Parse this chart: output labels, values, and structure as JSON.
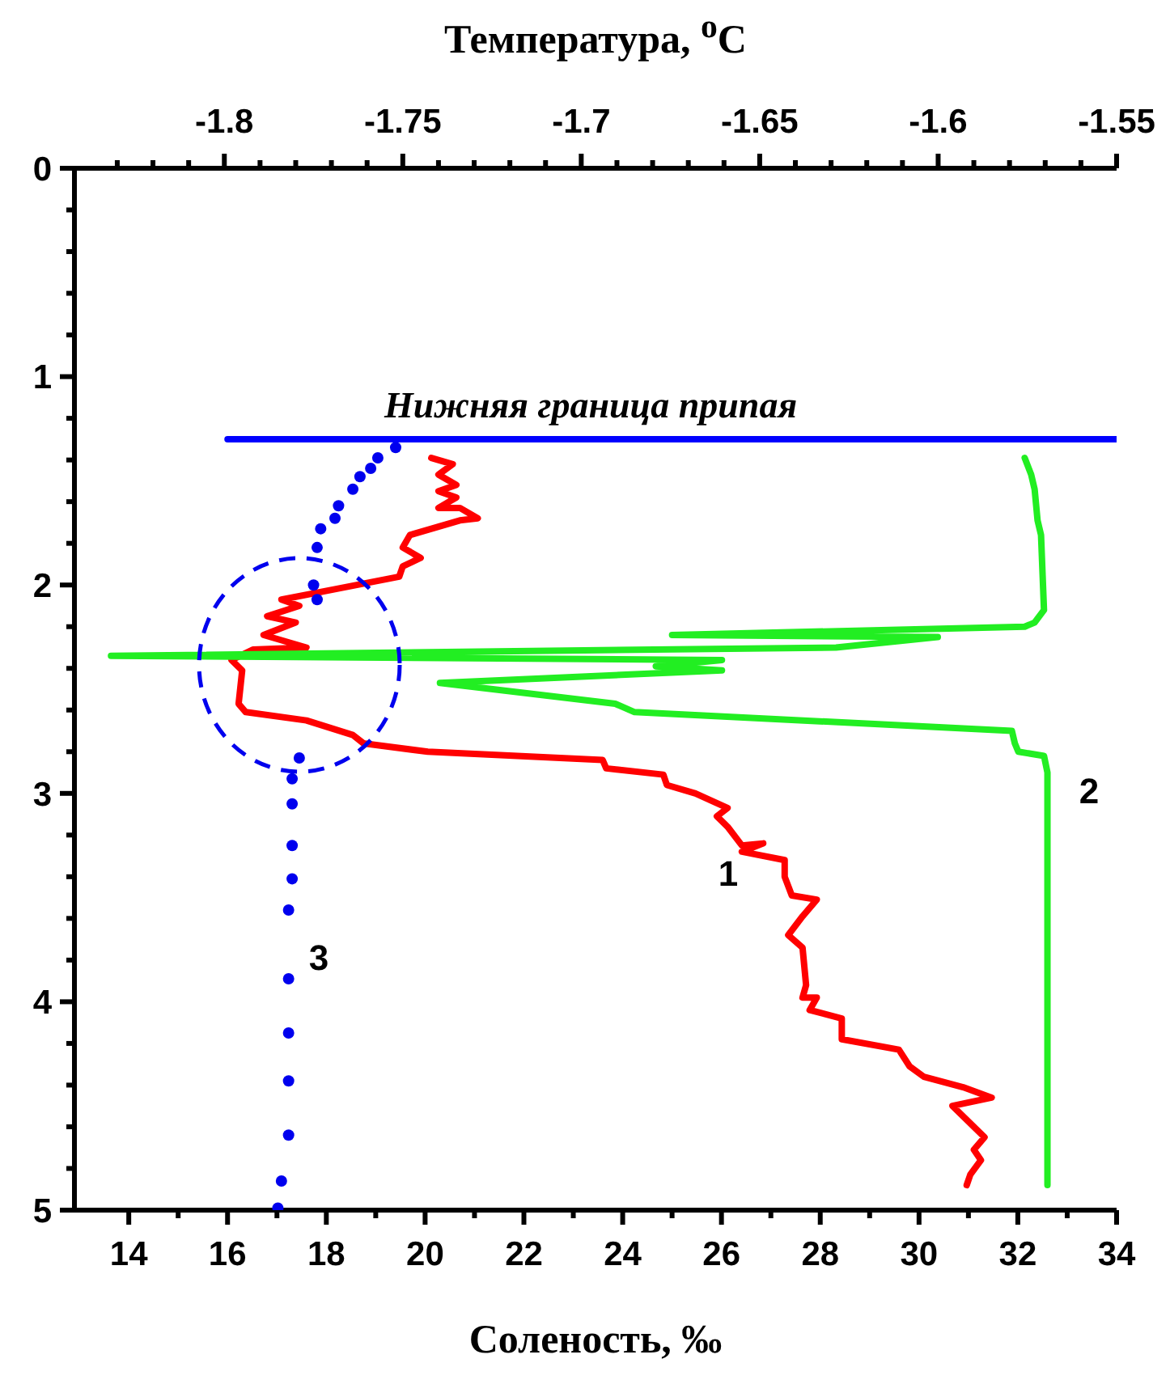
{
  "chart_data": {
    "type": "line",
    "xlabel": "Соленость, ‰",
    "x2label": "Температура, $^{o}$C",
    "xlim": [
      12.9,
      34
    ],
    "xticks": [
      {
        "value": 14,
        "label": "14"
      },
      {
        "value": 15,
        "label": null
      },
      {
        "value": 16,
        "label": "16"
      },
      {
        "value": 17,
        "label": null
      },
      {
        "value": 18,
        "label": "18"
      },
      {
        "value": 19,
        "label": null
      },
      {
        "value": 20,
        "label": "20"
      },
      {
        "value": 21,
        "label": null
      },
      {
        "value": 22,
        "label": "22"
      },
      {
        "value": 23,
        "label": null
      },
      {
        "value": 24,
        "label": "24"
      },
      {
        "value": 25,
        "label": null
      },
      {
        "value": 26,
        "label": "26"
      },
      {
        "value": 27,
        "label": null
      },
      {
        "value": 28,
        "label": "28"
      },
      {
        "value": 29,
        "label": null
      },
      {
        "value": 30,
        "label": "30"
      },
      {
        "value": 31,
        "label": null
      },
      {
        "value": 32,
        "label": "32"
      },
      {
        "value": 33,
        "label": null
      },
      {
        "value": 34,
        "label": "34"
      }
    ],
    "x2lim": [
      -1.842,
      -1.55
    ],
    "x2ticks": [
      {
        "value": -1.83,
        "label": null
      },
      {
        "value": -1.82,
        "label": null
      },
      {
        "value": -1.81,
        "label": null
      },
      {
        "value": -1.8,
        "label": "-1.8"
      },
      {
        "value": -1.79,
        "label": null
      },
      {
        "value": -1.78,
        "label": null
      },
      {
        "value": -1.77,
        "label": null
      },
      {
        "value": -1.76,
        "label": null
      },
      {
        "value": -1.75,
        "label": "-1.75"
      },
      {
        "value": -1.74,
        "label": null
      },
      {
        "value": -1.73,
        "label": null
      },
      {
        "value": -1.72,
        "label": null
      },
      {
        "value": -1.71,
        "label": null
      },
      {
        "value": -1.7,
        "label": "-1.7"
      },
      {
        "value": -1.69,
        "label": null
      },
      {
        "value": -1.68,
        "label": null
      },
      {
        "value": -1.67,
        "label": null
      },
      {
        "value": -1.66,
        "label": null
      },
      {
        "value": -1.65,
        "label": "-1.65"
      },
      {
        "value": -1.64,
        "label": null
      },
      {
        "value": -1.63,
        "label": null
      },
      {
        "value": -1.62,
        "label": null
      },
      {
        "value": -1.61,
        "label": null
      },
      {
        "value": -1.6,
        "label": "-1.6"
      },
      {
        "value": -1.59,
        "label": null
      },
      {
        "value": -1.58,
        "label": null
      },
      {
        "value": -1.57,
        "label": null
      },
      {
        "value": -1.56,
        "label": null
      },
      {
        "value": -1.55,
        "label": "-1.55"
      }
    ],
    "ylim": [
      5,
      0
    ],
    "yticks": [
      0,
      {
        "value": 0.2,
        "label": null
      },
      {
        "value": 0.4,
        "label": null
      },
      {
        "value": 0.6,
        "label": null
      },
      {
        "value": 0.8,
        "label": null
      },
      1,
      {
        "value": 1.2,
        "label": null
      },
      {
        "value": 1.4,
        "label": null
      },
      {
        "value": 1.6,
        "label": null
      },
      {
        "value": 1.8,
        "label": null
      },
      2,
      {
        "value": 2.2,
        "label": null
      },
      {
        "value": 2.4,
        "label": null
      },
      {
        "value": 2.6,
        "label": null
      },
      {
        "value": 2.8,
        "label": null
      },
      3,
      {
        "value": 3.2,
        "label": null
      },
      {
        "value": 3.4,
        "label": null
      },
      {
        "value": 3.6,
        "label": null
      },
      {
        "value": 3.8,
        "label": null
      },
      4,
      {
        "value": 4.2,
        "label": null
      },
      {
        "value": 4.4,
        "label": null
      },
      {
        "value": 4.6,
        "label": null
      },
      {
        "value": 4.8,
        "label": null
      },
      5
    ],
    "series": [
      {
        "axis": "x2",
        "color": "#ff0000",
        "x": [
          -1.742,
          -1.736,
          -1.74,
          -1.735,
          -1.74,
          -1.735,
          -1.74,
          -1.734,
          -1.729,
          -1.734,
          -1.748,
          -1.75,
          -1.745,
          -1.75,
          -1.751,
          -1.769,
          -1.784,
          -1.779,
          -1.788,
          -1.78,
          -1.789,
          -1.777,
          -1.792,
          -1.798,
          -1.795,
          -1.796,
          -1.794,
          -1.777,
          -1.764,
          -1.761,
          -1.743,
          -1.694,
          -1.693,
          -1.677,
          -1.676,
          -1.668,
          -1.659,
          -1.662,
          -1.659,
          -1.655,
          -1.649,
          -1.655,
          -1.643,
          -1.643,
          -1.641,
          -1.634,
          -1.638,
          -1.642,
          -1.638,
          -1.637,
          -1.638,
          -1.634,
          -1.636,
          -1.627,
          -1.627,
          -1.611,
          -1.608,
          -1.604,
          -1.593,
          -1.585,
          -1.596,
          -1.587,
          -1.59,
          -1.588,
          -1.591,
          -1.592
        ],
        "values": [
          1.39,
          1.42,
          1.47,
          1.52,
          1.55,
          1.58,
          1.63,
          1.63,
          1.68,
          1.69,
          1.76,
          1.82,
          1.87,
          1.91,
          1.96,
          2.02,
          2.07,
          2.1,
          2.15,
          2.18,
          2.24,
          2.3,
          2.31,
          2.36,
          2.41,
          2.57,
          2.61,
          2.65,
          2.72,
          2.76,
          2.8,
          2.84,
          2.88,
          2.91,
          2.96,
          3.0,
          3.07,
          3.11,
          3.16,
          3.25,
          3.24,
          3.28,
          3.32,
          3.4,
          3.49,
          3.51,
          3.59,
          3.68,
          3.74,
          3.92,
          3.98,
          3.98,
          4.04,
          4.08,
          4.18,
          4.23,
          4.31,
          4.36,
          4.41,
          4.46,
          4.5,
          4.65,
          4.71,
          4.76,
          4.83,
          4.88
        ]
      },
      {
        "color": "#22ee22",
        "x": [
          32.14,
          32.27,
          32.34,
          32.4,
          32.47,
          32.53,
          32.34,
          32.14,
          25.0,
          30.38,
          28.32,
          13.64,
          26.01,
          24.67,
          26.01,
          20.3,
          23.85,
          24.24,
          31.88,
          31.94,
          32.01,
          32.53,
          32.6,
          32.6,
          32.6
        ],
        "values": [
          1.39,
          1.47,
          1.54,
          1.69,
          1.76,
          2.12,
          2.18,
          2.2,
          2.24,
          2.25,
          2.3,
          2.34,
          2.36,
          2.39,
          2.41,
          2.47,
          2.57,
          2.61,
          2.7,
          2.76,
          2.8,
          2.82,
          2.9,
          3.85,
          4.88
        ]
      },
      {
        "type": "scatter",
        "axis": "x2",
        "marker": "circle",
        "color": "#0000ee",
        "x": [
          -1.752,
          -1.757,
          -1.759,
          -1.762,
          -1.764,
          -1.768,
          -1.769,
          -1.773,
          -1.774,
          -1.775,
          -1.774,
          -1.779,
          -1.781,
          -1.781,
          -1.781,
          -1.781,
          -1.782,
          -1.782,
          -1.782,
          -1.782,
          -1.782,
          -1.784,
          -1.785
        ],
        "values": [
          1.34,
          1.39,
          1.44,
          1.48,
          1.54,
          1.62,
          1.68,
          1.73,
          1.82,
          2.0,
          2.07,
          2.83,
          2.93,
          3.05,
          3.25,
          3.41,
          3.56,
          3.89,
          4.15,
          4.38,
          4.64,
          4.86,
          4.99
        ]
      },
      {
        "color": "#0000ff",
        "x": [
          16,
          34
        ],
        "values": [
          1.3,
          1.3
        ]
      }
    ],
    "annotations": [
      "Нижняя граница припая",
      "1",
      "2",
      "3"
    ]
  }
}
